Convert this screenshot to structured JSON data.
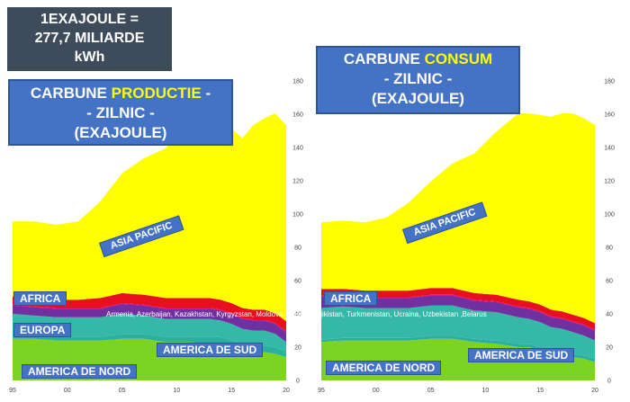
{
  "energy_note": {
    "line1": "1EXAJOULE =",
    "line2": "277,7 MILIARDE",
    "line3": "kWh"
  },
  "production_title": {
    "part1": "CARBUNE ",
    "highlight": "PRODUCTIE",
    "part2": " -",
    "line2": "- ZILNIC -",
    "line3": "(EXAJOULE)"
  },
  "consumption_title": {
    "part1": "CARBUNE ",
    "highlight": "CONSUM",
    "line2": "- ZILNIC -",
    "line3": "(EXAJOULE)"
  },
  "region_labels": {
    "africa": "AFRICA",
    "europa": "EUROPA",
    "america_sud": "AMERICA DE SUD",
    "america_nord": "AMERICA DE NORD",
    "asia": "ASIA PACIFIC"
  },
  "cis_note": "Armenia, Azerbaijan, Kazakhstan, Kyrgyzstan, Moldova, Russia, Tajikistan, Turkmenistan, Ucraina, Uzbekistan ,Belarus",
  "colors": {
    "north_america": "#7dd321",
    "south_america": "#2bb0a0",
    "europe": "#36b8a8",
    "cis": "#7030a0",
    "middle_east": "#e3007a",
    "africa": "#e8101e",
    "asia_pacific": "#ffff00",
    "label_bg": "#4472c4"
  },
  "chart_data": [
    {
      "type": "area",
      "stacked": true,
      "x": [
        1995,
        1997,
        1999,
        2001,
        2003,
        2005,
        2007,
        2009,
        2011,
        2013,
        2014,
        2015,
        2016,
        2017,
        2018,
        2019,
        2020
      ],
      "xticks": [
        "95",
        "00",
        "05",
        "10",
        "15",
        "20"
      ],
      "yticks": [
        "0",
        "20",
        "40",
        "60",
        "80",
        "100",
        "120",
        "140",
        "160",
        "180"
      ],
      "ylim": [
        0,
        180
      ],
      "series": [
        {
          "key": "north_america",
          "values": [
            25,
            25,
            24,
            24,
            24,
            25,
            25,
            23,
            23,
            22,
            22,
            20,
            17,
            17,
            17,
            16,
            14
          ]
        },
        {
          "key": "south_america",
          "values": [
            2,
            2,
            2,
            2,
            2,
            3,
            3,
            3,
            3,
            4,
            4,
            4,
            4,
            4,
            4,
            4,
            3
          ]
        },
        {
          "key": "europe",
          "values": [
            13,
            12,
            12,
            12,
            12,
            12,
            11,
            11,
            11,
            11,
            10,
            10,
            10,
            9,
            9,
            8,
            6
          ]
        },
        {
          "key": "cis",
          "values": [
            5,
            5,
            5,
            5,
            5,
            6,
            6,
            6,
            6,
            6,
            6,
            6,
            6,
            6,
            6,
            6,
            6
          ]
        },
        {
          "key": "middle_east",
          "values": [
            0.5,
            0.5,
            0.5,
            0.5,
            0.5,
            0.5,
            0.5,
            0.5,
            0.5,
            0.5,
            0.5,
            0.5,
            0.5,
            0.5,
            0.5,
            0.5,
            0.5
          ]
        },
        {
          "key": "africa",
          "values": [
            5,
            5,
            5,
            5,
            6,
            6,
            6,
            6,
            6,
            6,
            6,
            6,
            6,
            6,
            6,
            6,
            6
          ]
        },
        {
          "key": "asia_pacific",
          "values": [
            45,
            46,
            45,
            47,
            58,
            72,
            82,
            90,
            104,
            113,
            111,
            105,
            102,
            111,
            115,
            120,
            118
          ]
        }
      ]
    },
    {
      "type": "area",
      "stacked": true,
      "x": [
        1995,
        1997,
        1999,
        2001,
        2003,
        2005,
        2007,
        2009,
        2011,
        2013,
        2014,
        2015,
        2016,
        2017,
        2018,
        2019,
        2020
      ],
      "xticks": [
        "95",
        "00",
        "05",
        "10",
        "15",
        "20"
      ],
      "yticks": [
        "0",
        "20",
        "40",
        "60",
        "80",
        "100",
        "120",
        "140",
        "160",
        "180"
      ],
      "ylim": [
        0,
        180
      ],
      "series": [
        {
          "key": "north_america",
          "values": [
            23,
            24,
            24,
            24,
            24,
            25,
            25,
            23,
            22,
            20,
            20,
            18,
            16,
            15,
            14,
            13,
            11
          ]
        },
        {
          "key": "south_america",
          "values": [
            1.5,
            1.5,
            1.5,
            1.5,
            1.5,
            2,
            2,
            2,
            2,
            2,
            2,
            2,
            2,
            2,
            2,
            2,
            2
          ]
        },
        {
          "key": "europe",
          "values": [
            19,
            19,
            18,
            18,
            18,
            18,
            18,
            17,
            17,
            16,
            15,
            15,
            14,
            14,
            13,
            12,
            11
          ]
        },
        {
          "key": "cis",
          "values": [
            7,
            6,
            6,
            6,
            6,
            6,
            6,
            6,
            6,
            6,
            6,
            6,
            6,
            6,
            6,
            6,
            6
          ]
        },
        {
          "key": "middle_east",
          "values": [
            0.5,
            0.5,
            0.5,
            0.5,
            0.5,
            0.5,
            0.5,
            0.5,
            0.5,
            0.5,
            0.5,
            0.5,
            0.5,
            0.5,
            0.5,
            0.5,
            0.5
          ]
        },
        {
          "key": "africa",
          "values": [
            4,
            4,
            4,
            4,
            4,
            4,
            4,
            4,
            4,
            4,
            4,
            4,
            4,
            4,
            4,
            4,
            4
          ]
        },
        {
          "key": "asia_pacific",
          "values": [
            40,
            41,
            41,
            44,
            53,
            64,
            75,
            84,
            98,
            112,
            113,
            114,
            116,
            119,
            121,
            120,
            119
          ]
        }
      ]
    }
  ]
}
